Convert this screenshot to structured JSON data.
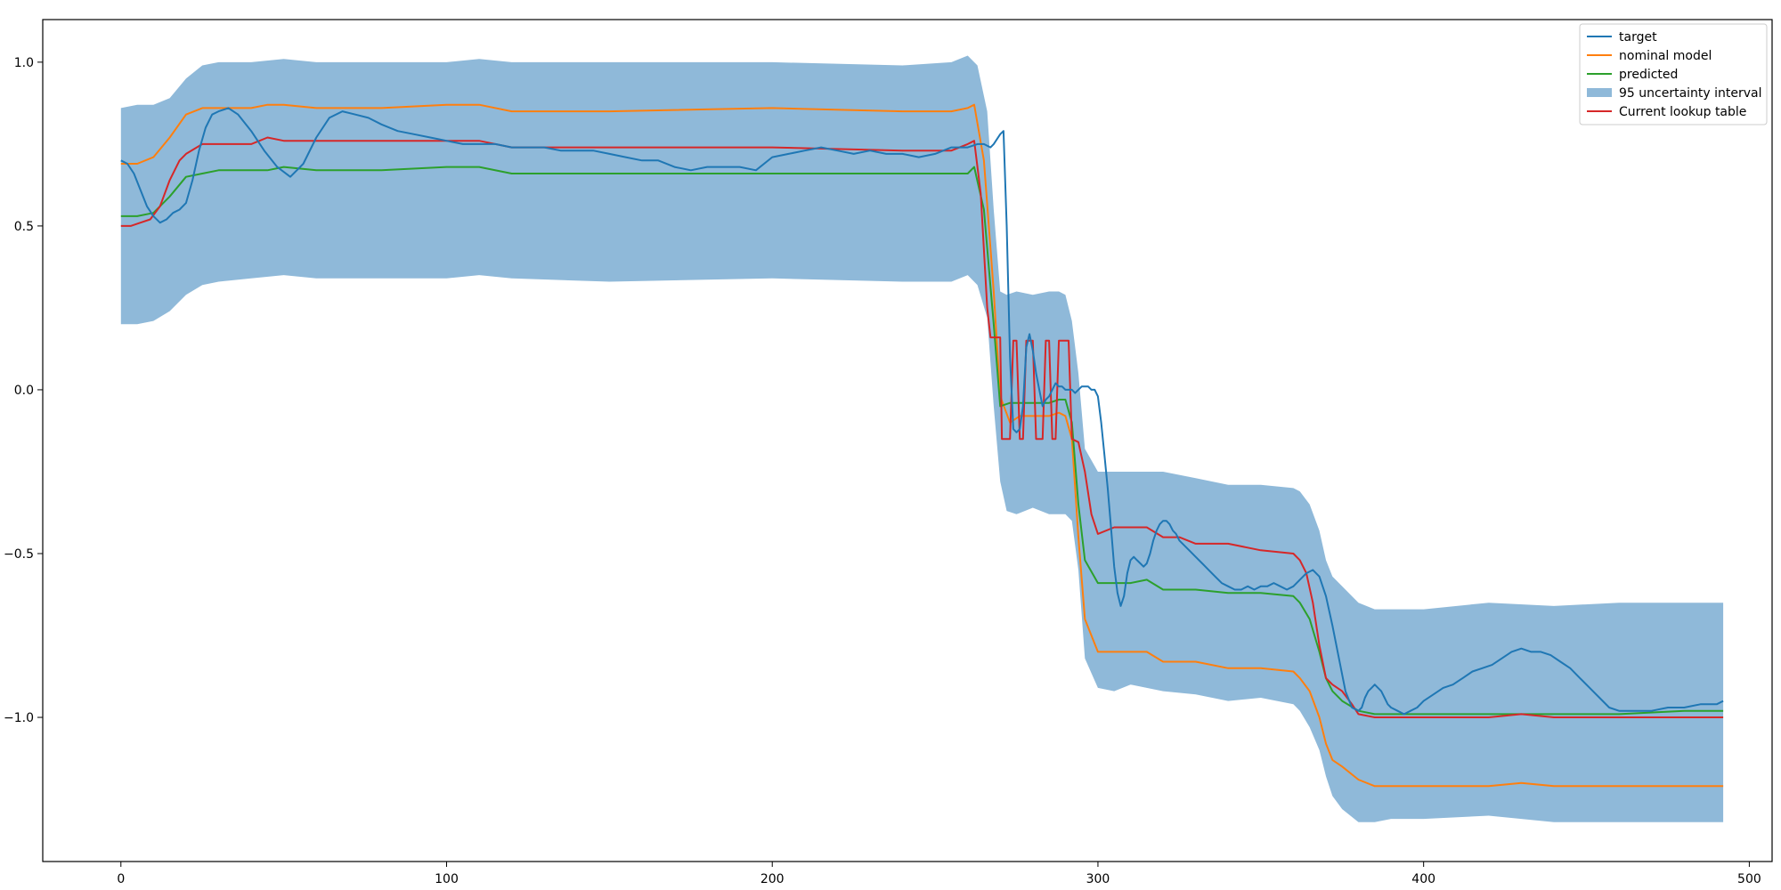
{
  "chart_data": {
    "type": "line",
    "title": "",
    "xlabel": "",
    "ylabel": "",
    "xlim": [
      -24,
      507
    ],
    "ylim": [
      -1.44,
      1.13
    ],
    "grid": false,
    "legend_position": "top-right",
    "x_ticks": [
      0,
      100,
      200,
      300,
      400,
      500
    ],
    "y_ticks": [
      1.0,
      0.5,
      0.0,
      -0.5,
      -1.0
    ],
    "x_tick_labels": [
      "0",
      "100",
      "200",
      "300",
      "400",
      "500"
    ],
    "y_tick_labels": [
      "1.0",
      "0.5",
      "0.0",
      "−0.5",
      "−1.0"
    ],
    "legend": [
      {
        "label": "target",
        "kind": "line",
        "color": "#1f77b4"
      },
      {
        "label": "nominal model",
        "kind": "line",
        "color": "#ff7f0e"
      },
      {
        "label": "predicted",
        "kind": "line",
        "color": "#2ca02c"
      },
      {
        "label": "95 uncertainty interval",
        "kind": "patch",
        "color": "#8fb9d9"
      },
      {
        "label": "Current lookup table",
        "kind": "line",
        "color": "#d62728"
      }
    ],
    "band": {
      "name": "95 uncertainty interval",
      "color": "#8fb9d9",
      "x": [
        0,
        5,
        10,
        15,
        20,
        25,
        30,
        40,
        50,
        60,
        80,
        100,
        110,
        120,
        150,
        200,
        240,
        255,
        260,
        263,
        266,
        268,
        270,
        272,
        275,
        280,
        285,
        288,
        290,
        292,
        294,
        296,
        300,
        305,
        310,
        320,
        330,
        340,
        350,
        360,
        362,
        365,
        368,
        370,
        372,
        375,
        380,
        385,
        390,
        400,
        420,
        440,
        460,
        480,
        492
      ],
      "upper": [
        0.86,
        0.87,
        0.87,
        0.89,
        0.95,
        0.99,
        1.0,
        1.0,
        1.01,
        1.0,
        1.0,
        1.0,
        1.01,
        1.0,
        1.0,
        1.0,
        0.99,
        1.0,
        1.02,
        0.99,
        0.85,
        0.55,
        0.3,
        0.29,
        0.3,
        0.29,
        0.3,
        0.3,
        0.29,
        0.21,
        0.05,
        -0.18,
        -0.25,
        -0.25,
        -0.25,
        -0.25,
        -0.27,
        -0.29,
        -0.29,
        -0.3,
        -0.31,
        -0.35,
        -0.43,
        -0.52,
        -0.57,
        -0.6,
        -0.65,
        -0.67,
        -0.67,
        -0.67,
        -0.65,
        -0.66,
        -0.65,
        -0.65,
        -0.65
      ],
      "lower": [
        0.2,
        0.2,
        0.21,
        0.24,
        0.29,
        0.32,
        0.33,
        0.34,
        0.35,
        0.34,
        0.34,
        0.34,
        0.35,
        0.34,
        0.33,
        0.34,
        0.33,
        0.33,
        0.35,
        0.32,
        0.22,
        -0.05,
        -0.28,
        -0.37,
        -0.38,
        -0.36,
        -0.38,
        -0.38,
        -0.38,
        -0.4,
        -0.55,
        -0.82,
        -0.91,
        -0.92,
        -0.9,
        -0.92,
        -0.93,
        -0.95,
        -0.94,
        -0.96,
        -0.98,
        -1.03,
        -1.1,
        -1.18,
        -1.24,
        -1.28,
        -1.32,
        -1.32,
        -1.31,
        -1.31,
        -1.3,
        -1.32,
        -1.32,
        -1.32,
        -1.32
      ]
    },
    "series": [
      {
        "name": "nominal model",
        "color": "#ff7f0e",
        "x": [
          0,
          5,
          10,
          15,
          20,
          25,
          30,
          40,
          45,
          50,
          60,
          80,
          100,
          110,
          120,
          150,
          200,
          240,
          255,
          260,
          262,
          265,
          268,
          270,
          273,
          276,
          280,
          285,
          288,
          290,
          292,
          294,
          296,
          300,
          305,
          310,
          315,
          320,
          330,
          340,
          350,
          360,
          362,
          365,
          368,
          370,
          372,
          375,
          380,
          385,
          390,
          400,
          420,
          430,
          440,
          460,
          480,
          492
        ],
        "y": [
          0.69,
          0.69,
          0.71,
          0.77,
          0.84,
          0.86,
          0.86,
          0.86,
          0.87,
          0.87,
          0.86,
          0.86,
          0.87,
          0.87,
          0.85,
          0.85,
          0.86,
          0.85,
          0.85,
          0.86,
          0.87,
          0.7,
          0.3,
          -0.02,
          -0.1,
          -0.08,
          -0.08,
          -0.08,
          -0.07,
          -0.08,
          -0.15,
          -0.45,
          -0.7,
          -0.8,
          -0.8,
          -0.8,
          -0.8,
          -0.83,
          -0.83,
          -0.85,
          -0.85,
          -0.86,
          -0.88,
          -0.92,
          -1.0,
          -1.08,
          -1.13,
          -1.15,
          -1.19,
          -1.21,
          -1.21,
          -1.21,
          -1.21,
          -1.2,
          -1.21,
          -1.21,
          -1.21,
          -1.21
        ]
      },
      {
        "name": "predicted",
        "color": "#2ca02c",
        "x": [
          0,
          5,
          10,
          15,
          20,
          25,
          30,
          40,
          45,
          50,
          60,
          80,
          100,
          110,
          120,
          150,
          200,
          240,
          255,
          260,
          262,
          265,
          268,
          270,
          273,
          276,
          280,
          285,
          288,
          290,
          292,
          294,
          296,
          300,
          305,
          310,
          315,
          320,
          330,
          340,
          350,
          360,
          362,
          365,
          368,
          370,
          372,
          375,
          380,
          385,
          390,
          400,
          420,
          440,
          460,
          480,
          492
        ],
        "y": [
          0.53,
          0.53,
          0.54,
          0.59,
          0.65,
          0.66,
          0.67,
          0.67,
          0.67,
          0.68,
          0.67,
          0.67,
          0.68,
          0.68,
          0.66,
          0.66,
          0.66,
          0.66,
          0.66,
          0.66,
          0.68,
          0.55,
          0.2,
          -0.05,
          -0.04,
          -0.04,
          -0.04,
          -0.04,
          -0.03,
          -0.03,
          -0.1,
          -0.35,
          -0.52,
          -0.59,
          -0.59,
          -0.59,
          -0.58,
          -0.61,
          -0.61,
          -0.62,
          -0.62,
          -0.63,
          -0.65,
          -0.7,
          -0.8,
          -0.88,
          -0.92,
          -0.95,
          -0.98,
          -0.99,
          -0.99,
          -0.99,
          -0.99,
          -0.99,
          -0.99,
          -0.98,
          -0.98
        ]
      },
      {
        "name": "Current lookup table",
        "color": "#d62728",
        "x": [
          0,
          3,
          6,
          9,
          12,
          15,
          18,
          20,
          25,
          30,
          40,
          45,
          50,
          60,
          80,
          100,
          110,
          120,
          150,
          200,
          240,
          255,
          260,
          262,
          264,
          266,
          267,
          268,
          270,
          270.5,
          273,
          274,
          275,
          276,
          277,
          278,
          280,
          281,
          283,
          284,
          285,
          286,
          287,
          288,
          289,
          290,
          291,
          292,
          294,
          296,
          298,
          300,
          305,
          310,
          315,
          320,
          325,
          330,
          340,
          350,
          360,
          362,
          364,
          366,
          368,
          370,
          372,
          375,
          378,
          380,
          385,
          390,
          400,
          420,
          430,
          440,
          460,
          480,
          492
        ],
        "y": [
          0.5,
          0.5,
          0.51,
          0.52,
          0.56,
          0.64,
          0.7,
          0.72,
          0.75,
          0.75,
          0.75,
          0.77,
          0.76,
          0.76,
          0.76,
          0.76,
          0.76,
          0.74,
          0.74,
          0.74,
          0.73,
          0.73,
          0.75,
          0.76,
          0.6,
          0.25,
          0.16,
          0.16,
          0.16,
          -0.15,
          -0.15,
          0.15,
          0.15,
          -0.15,
          -0.15,
          0.15,
          0.15,
          -0.15,
          -0.15,
          0.15,
          0.15,
          -0.15,
          -0.15,
          0.15,
          0.15,
          0.15,
          0.15,
          -0.15,
          -0.16,
          -0.25,
          -0.38,
          -0.44,
          -0.42,
          -0.42,
          -0.42,
          -0.45,
          -0.45,
          -0.47,
          -0.47,
          -0.49,
          -0.5,
          -0.52,
          -0.56,
          -0.65,
          -0.78,
          -0.88,
          -0.9,
          -0.92,
          -0.96,
          -0.99,
          -1.0,
          -1.0,
          -1.0,
          -1.0,
          -0.99,
          -1.0,
          -1.0,
          -1.0,
          -1.0
        ]
      },
      {
        "name": "target",
        "color": "#1f77b4",
        "x": [
          0,
          2,
          4,
          6,
          8,
          10,
          12,
          14,
          16,
          18,
          20,
          22,
          24,
          26,
          28,
          30,
          33,
          36,
          40,
          44,
          48,
          52,
          56,
          60,
          64,
          68,
          72,
          76,
          80,
          85,
          90,
          95,
          100,
          105,
          110,
          115,
          120,
          125,
          130,
          135,
          140,
          145,
          150,
          155,
          160,
          165,
          170,
          175,
          180,
          185,
          190,
          195,
          200,
          205,
          210,
          215,
          220,
          225,
          230,
          235,
          240,
          245,
          250,
          255,
          258,
          260,
          263,
          265,
          267,
          268,
          270,
          271,
          272,
          273,
          274,
          275,
          276,
          277,
          278,
          279,
          280,
          281,
          282,
          283,
          284,
          285,
          286,
          287,
          288,
          289,
          290,
          292,
          293,
          294,
          295,
          296,
          297,
          298,
          299,
          300,
          301,
          302,
          303,
          304,
          305,
          306,
          307,
          308,
          309,
          310,
          311,
          312,
          313,
          314,
          315,
          316,
          317,
          318,
          319,
          320,
          321,
          322,
          323,
          324,
          325,
          326,
          328,
          330,
          332,
          334,
          336,
          338,
          340,
          342,
          344,
          346,
          348,
          350,
          352,
          354,
          356,
          358,
          360,
          362,
          364,
          366,
          368,
          370,
          372,
          374,
          376,
          378,
          380,
          381,
          382,
          383,
          384,
          385,
          386,
          387,
          388,
          389,
          390,
          392,
          394,
          396,
          398,
          400,
          403,
          406,
          409,
          412,
          415,
          418,
          421,
          424,
          427,
          430,
          433,
          436,
          439,
          442,
          445,
          448,
          451,
          454,
          457,
          460,
          465,
          470,
          475,
          480,
          485,
          490,
          492
        ],
        "y": [
          0.7,
          0.69,
          0.66,
          0.61,
          0.56,
          0.53,
          0.51,
          0.52,
          0.54,
          0.55,
          0.57,
          0.64,
          0.73,
          0.8,
          0.84,
          0.85,
          0.86,
          0.84,
          0.79,
          0.73,
          0.68,
          0.65,
          0.69,
          0.77,
          0.83,
          0.85,
          0.84,
          0.83,
          0.81,
          0.79,
          0.78,
          0.77,
          0.76,
          0.75,
          0.75,
          0.75,
          0.74,
          0.74,
          0.74,
          0.73,
          0.73,
          0.73,
          0.72,
          0.71,
          0.7,
          0.7,
          0.68,
          0.67,
          0.68,
          0.68,
          0.68,
          0.67,
          0.71,
          0.72,
          0.73,
          0.74,
          0.73,
          0.72,
          0.73,
          0.72,
          0.72,
          0.71,
          0.72,
          0.74,
          0.74,
          0.74,
          0.75,
          0.75,
          0.74,
          0.75,
          0.78,
          0.79,
          0.5,
          0.1,
          -0.12,
          -0.13,
          -0.12,
          -0.05,
          0.13,
          0.17,
          0.12,
          0.05,
          0.0,
          -0.05,
          -0.03,
          -0.02,
          0.0,
          0.02,
          0.01,
          0.01,
          0.0,
          0.0,
          -0.01,
          0.0,
          0.01,
          0.01,
          0.01,
          0.0,
          0.0,
          -0.02,
          -0.1,
          -0.2,
          -0.3,
          -0.42,
          -0.54,
          -0.62,
          -0.66,
          -0.63,
          -0.56,
          -0.52,
          -0.51,
          -0.52,
          -0.53,
          -0.54,
          -0.53,
          -0.5,
          -0.46,
          -0.43,
          -0.41,
          -0.4,
          -0.4,
          -0.41,
          -0.43,
          -0.44,
          -0.46,
          -0.47,
          -0.49,
          -0.51,
          -0.53,
          -0.55,
          -0.57,
          -0.59,
          -0.6,
          -0.61,
          -0.61,
          -0.6,
          -0.61,
          -0.6,
          -0.6,
          -0.59,
          -0.6,
          -0.61,
          -0.6,
          -0.58,
          -0.56,
          -0.55,
          -0.57,
          -0.63,
          -0.72,
          -0.82,
          -0.92,
          -0.97,
          -0.98,
          -0.97,
          -0.94,
          -0.92,
          -0.91,
          -0.9,
          -0.91,
          -0.92,
          -0.94,
          -0.96,
          -0.97,
          -0.98,
          -0.99,
          -0.98,
          -0.97,
          -0.95,
          -0.93,
          -0.91,
          -0.9,
          -0.88,
          -0.86,
          -0.85,
          -0.84,
          -0.82,
          -0.8,
          -0.79,
          -0.8,
          -0.8,
          -0.81,
          -0.83,
          -0.85,
          -0.88,
          -0.91,
          -0.94,
          -0.97,
          -0.98,
          -0.98,
          -0.98,
          -0.97,
          -0.97,
          -0.96,
          -0.96,
          -0.95
        ]
      }
    ]
  }
}
